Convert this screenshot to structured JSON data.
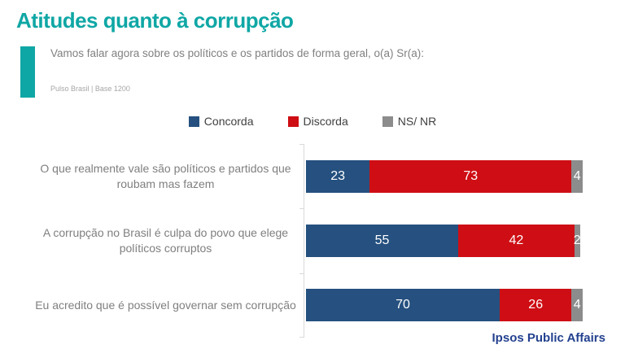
{
  "title": "Atitudes quanto à corrupção",
  "subtitle": "Vamos falar agora sobre os políticos e os partidos de forma geral, o(a) Sr(a):",
  "source": "Pulso Brasil | Base 1200",
  "footer": "Ipsos Public Affairs",
  "colors": {
    "accent_teal": "#0FA7A5",
    "concorda_blue": "#25507F",
    "discorda_red": "#CE0E14",
    "nsnr_gray": "#8C8C8C",
    "label_gray": "#7F7F7F",
    "legend_text": "#404040",
    "axis_line": "#D9D9D9",
    "footer_blue": "#23418F"
  },
  "chart_data": {
    "type": "bar",
    "orientation": "horizontal",
    "stacked": true,
    "title": "",
    "xlabel": "",
    "ylabel": "",
    "xlim": [
      0,
      100
    ],
    "grid": false,
    "legend_position": "top-center",
    "value_labels": "inside-white",
    "categories": [
      "O que realmente vale são políticos e partidos que roubam mas fazem",
      "A corrupção no Brasil é culpa do povo que elege políticos corruptos",
      "Eu acredito que é possível governar sem corrupção"
    ],
    "series": [
      {
        "name": "Concorda",
        "color": "#25507F",
        "values": [
          23,
          55,
          70
        ]
      },
      {
        "name": "Discorda",
        "color": "#CE0E14",
        "values": [
          73,
          42,
          26
        ]
      },
      {
        "name": "NS/ NR",
        "color": "#8C8C8C",
        "values": [
          4,
          2,
          4
        ]
      }
    ]
  }
}
